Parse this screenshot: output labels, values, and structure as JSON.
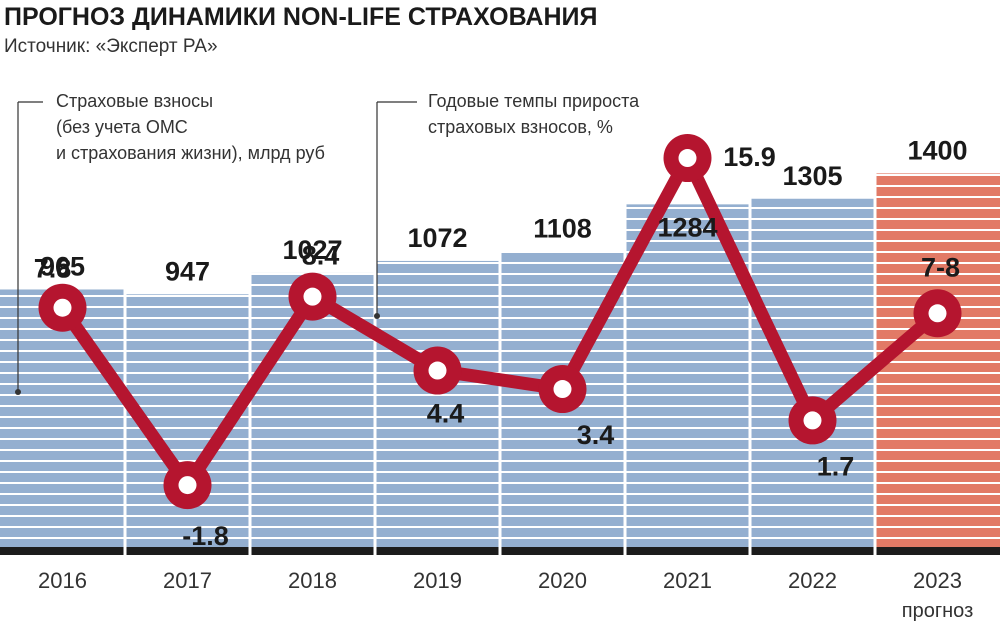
{
  "header": {
    "title": "ПРОГНОЗ ДИНАМИКИ NON-LIFE СТРАХОВАНИЯ",
    "subtitle": "Источник: «Эксперт РА»"
  },
  "legend": {
    "premiums_lines": [
      "Страховые взносы",
      "(без учета ОМС",
      "и страхования жизни), млрд руб"
    ],
    "growth_lines": [
      "Годовые темпы прироста",
      "страховых взносов, %"
    ]
  },
  "colors": {
    "bar": "#94afd0",
    "bar_forecast": "#e27a66",
    "bar_stripe": "#ffffff",
    "baseline": "#1c1c1c",
    "line": "#b5152f",
    "marker_center": "#ffffff",
    "forecast_label": "#ffffff"
  },
  "chart_data": {
    "type": "bar",
    "categories": [
      "2016",
      "2017",
      "2018",
      "2019",
      "2020",
      "2021",
      "2022",
      "2023"
    ],
    "category_note": {
      "index": 7,
      "text": "прогноз"
    },
    "series": [
      {
        "name": "Страховые взносы (без учета ОМС и страхования жизни), млрд руб",
        "type": "bar",
        "values": [
          965,
          947,
          1027,
          1072,
          1108,
          1284,
          1305,
          1400
        ],
        "labels": [
          "965",
          "947",
          "1027",
          "1072",
          "1108",
          "1284",
          "1305",
          "1400"
        ],
        "forecast_index": 7
      },
      {
        "name": "Годовые темпы прироста страховых взносов, %",
        "type": "line",
        "values": [
          7.8,
          -1.8,
          8.4,
          4.4,
          3.4,
          15.9,
          1.7,
          7.5
        ],
        "labels": [
          "7.8",
          "-1.8",
          "8.4",
          "4.4",
          "3.4",
          "15.9",
          "1.7",
          "7-8"
        ]
      }
    ],
    "bars_ylim": [
      0,
      1750
    ],
    "line_ylim": [
      -4.5,
      18.5
    ],
    "grid": false,
    "legend": "top-left"
  }
}
